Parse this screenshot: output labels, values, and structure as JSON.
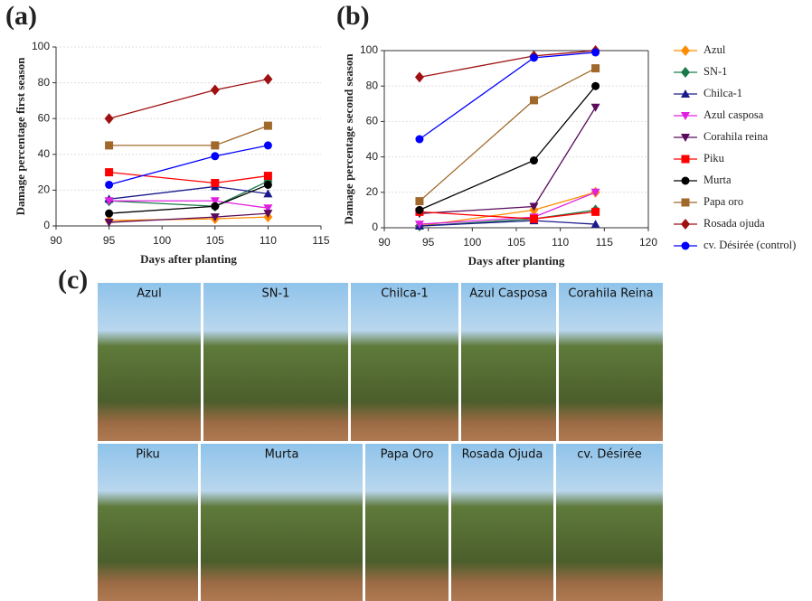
{
  "panel_labels": [
    "(a)",
    "(b)",
    "(c)"
  ],
  "chart_data": [
    {
      "type": "line",
      "ylabel": "Damage percentage first season",
      "xlabel": "Days after planting",
      "x": [
        95,
        105,
        110
      ],
      "xlim": [
        90,
        115
      ],
      "xticks": [
        90,
        95,
        100,
        105,
        110,
        115
      ],
      "ylim": [
        0,
        100
      ],
      "yticks": [
        0,
        20,
        40,
        60,
        80,
        100
      ],
      "grid": true,
      "frame": false,
      "series": [
        {
          "color": "#ff8c00",
          "marker": "diamond",
          "values": [
            3,
            4,
            5
          ]
        },
        {
          "color": "#1a7a4a",
          "marker": "diamond",
          "values": [
            14,
            11,
            25
          ]
        },
        {
          "color": "#1a1a8c",
          "marker": "triangle",
          "values": [
            15,
            22,
            18
          ]
        },
        {
          "color": "#e020e0",
          "marker": "triangle-down",
          "values": [
            14,
            14,
            10
          ]
        },
        {
          "color": "#5a0a5a",
          "marker": "triangle-down",
          "values": [
            2,
            5,
            7
          ]
        },
        {
          "color": "#ff0000",
          "marker": "square",
          "values": [
            30,
            24,
            28
          ]
        },
        {
          "color": "#000000",
          "marker": "circle",
          "values": [
            7,
            11,
            23
          ]
        },
        {
          "color": "#a0682a",
          "marker": "square",
          "values": [
            45,
            45,
            56
          ]
        },
        {
          "color": "#a01010",
          "marker": "diamond",
          "values": [
            60,
            76,
            82
          ]
        },
        {
          "color": "#0000ff",
          "marker": "circle",
          "values": [
            23,
            39,
            45
          ]
        }
      ]
    },
    {
      "type": "line",
      "ylabel": "Damage percentage second season",
      "xlabel": "Days after planting",
      "x": [
        94,
        107,
        114
      ],
      "xlim": [
        90,
        120
      ],
      "xticks": [
        90,
        95,
        100,
        105,
        110,
        115,
        120
      ],
      "ylim": [
        0,
        100
      ],
      "yticks": [
        0,
        20,
        40,
        60,
        80,
        100
      ],
      "grid": true,
      "frame": true,
      "series": [
        {
          "name": "Azul",
          "color": "#ff8c00",
          "marker": "diamond",
          "values": [
            1,
            10,
            20
          ]
        },
        {
          "name": "SN-1",
          "color": "#1a7a4a",
          "marker": "diamond",
          "values": [
            1,
            5,
            10
          ]
        },
        {
          "name": "Chilca-1",
          "color": "#1a1a8c",
          "marker": "triangle",
          "values": [
            1,
            4,
            2
          ]
        },
        {
          "name": "Azul casposa",
          "color": "#e020e0",
          "marker": "triangle-down",
          "values": [
            2,
            6,
            20
          ]
        },
        {
          "name": "Corahila reina",
          "color": "#5a0a5a",
          "marker": "triangle-down",
          "values": [
            8,
            12,
            68
          ]
        },
        {
          "name": "Piku",
          "color": "#ff0000",
          "marker": "square",
          "values": [
            9,
            5,
            9
          ]
        },
        {
          "name": "Murta",
          "color": "#000000",
          "marker": "circle",
          "values": [
            10,
            38,
            80
          ]
        },
        {
          "name": "Papa oro",
          "color": "#a0682a",
          "marker": "square",
          "values": [
            15,
            72,
            90
          ]
        },
        {
          "name": "Rosada ojuda",
          "color": "#a01010",
          "marker": "diamond",
          "values": [
            85,
            97,
            100
          ]
        },
        {
          "name": "cv. Désirée (control)",
          "color": "#0000ff",
          "marker": "circle",
          "values": [
            50,
            96,
            99
          ]
        }
      ]
    }
  ],
  "photos": [
    "Azul",
    "SN-1",
    "Chilca-1",
    "Azul  Casposa",
    "Corahila Reina",
    "Piku",
    "Murta",
    "Papa Oro",
    "Rosada Ojuda",
    "cv. Désirée"
  ]
}
